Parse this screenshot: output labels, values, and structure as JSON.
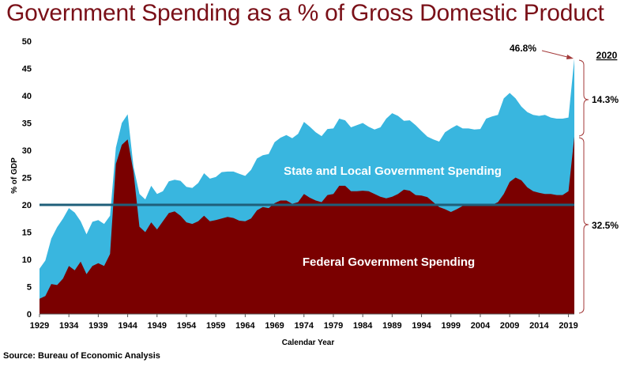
{
  "title": "Government Spending as a % of Gross Domestic Product",
  "source": "Source: Bureau of Economic Analysis",
  "chart_data": {
    "type": "area",
    "title": "Government Spending as a % of Gross Domestic Product",
    "xlabel": "Calendar Year",
    "ylabel": "% of GDP",
    "xlim": [
      1929,
      2020
    ],
    "ylim": [
      0,
      50
    ],
    "x_ticks": [
      "1929",
      "1934",
      "1939",
      "1944",
      "1949",
      "1954",
      "1959",
      "1964",
      "1969",
      "1974",
      "1979",
      "1984",
      "1989",
      "1994",
      "1999",
      "2004",
      "2009",
      "2014",
      "2019"
    ],
    "y_ticks": [
      0,
      5,
      10,
      15,
      20,
      25,
      30,
      35,
      40,
      45,
      50
    ],
    "reference_line": {
      "value": 20,
      "color": "#1f5f7a"
    },
    "colors": {
      "federal": "#7a0000",
      "state_local": "#39b6df",
      "title": "#7a1018",
      "bracket": "#a33a3a"
    },
    "series": [
      {
        "name": "Federal Government Spending",
        "stack": "bottom",
        "years": [
          1929,
          1930,
          1931,
          1932,
          1933,
          1934,
          1935,
          1936,
          1937,
          1938,
          1939,
          1940,
          1941,
          1942,
          1943,
          1944,
          1945,
          1946,
          1947,
          1948,
          1949,
          1950,
          1951,
          1952,
          1953,
          1954,
          1955,
          1956,
          1957,
          1958,
          1959,
          1960,
          1961,
          1962,
          1963,
          1964,
          1965,
          1966,
          1967,
          1968,
          1969,
          1970,
          1971,
          1972,
          1973,
          1974,
          1975,
          1976,
          1977,
          1978,
          1979,
          1980,
          1981,
          1982,
          1983,
          1984,
          1985,
          1986,
          1987,
          1988,
          1989,
          1990,
          1991,
          1992,
          1993,
          1994,
          1995,
          1996,
          1997,
          1998,
          1999,
          2000,
          2001,
          2002,
          2003,
          2004,
          2005,
          2006,
          2007,
          2008,
          2009,
          2010,
          2011,
          2012,
          2013,
          2014,
          2015,
          2016,
          2017,
          2018,
          2019,
          2020
        ],
        "values": [
          2.8,
          3.3,
          5.5,
          5.3,
          6.5,
          8.8,
          8.0,
          9.6,
          7.3,
          8.8,
          9.3,
          8.8,
          11.0,
          27.5,
          31.0,
          32.0,
          26.0,
          16.0,
          15.0,
          16.8,
          15.5,
          17.0,
          18.5,
          18.8,
          18.0,
          16.8,
          16.5,
          17.0,
          18.0,
          17.0,
          17.2,
          17.5,
          17.8,
          17.6,
          17.1,
          17.0,
          17.5,
          19.0,
          19.6,
          19.4,
          20.3,
          20.8,
          20.8,
          20.2,
          20.5,
          22.0,
          21.3,
          20.8,
          20.5,
          21.8,
          22.0,
          23.5,
          23.5,
          22.5,
          22.5,
          22.6,
          22.5,
          22.0,
          21.5,
          21.2,
          21.5,
          22.0,
          22.8,
          22.6,
          21.8,
          21.7,
          21.4,
          20.5,
          19.6,
          19.2,
          18.7,
          19.2,
          19.8,
          20.0,
          20.0,
          20.0,
          20.0,
          20.0,
          20.5,
          22.0,
          24.2,
          25.0,
          24.5,
          23.2,
          22.5,
          22.2,
          22.0,
          22.0,
          21.8,
          21.8,
          22.5,
          32.5
        ]
      },
      {
        "name": "State and Local Government Spending",
        "stack": "total",
        "years": [
          1929,
          1930,
          1931,
          1932,
          1933,
          1934,
          1935,
          1936,
          1937,
          1938,
          1939,
          1940,
          1941,
          1942,
          1943,
          1944,
          1945,
          1946,
          1947,
          1948,
          1949,
          1950,
          1951,
          1952,
          1953,
          1954,
          1955,
          1956,
          1957,
          1958,
          1959,
          1960,
          1961,
          1962,
          1963,
          1964,
          1965,
          1966,
          1967,
          1968,
          1969,
          1970,
          1971,
          1972,
          1973,
          1974,
          1975,
          1976,
          1977,
          1978,
          1979,
          1980,
          1981,
          1982,
          1983,
          1984,
          1985,
          1986,
          1987,
          1988,
          1989,
          1990,
          1991,
          1992,
          1993,
          1994,
          1995,
          1996,
          1997,
          1998,
          1999,
          2000,
          2001,
          2002,
          2003,
          2004,
          2005,
          2006,
          2007,
          2008,
          2009,
          2010,
          2011,
          2012,
          2013,
          2014,
          2015,
          2016,
          2017,
          2018,
          2019,
          2020
        ],
        "values": [
          8.3,
          9.8,
          13.8,
          15.9,
          17.5,
          19.4,
          18.6,
          17.0,
          14.6,
          16.9,
          17.2,
          16.5,
          18.0,
          30.5,
          35.0,
          36.6,
          27.0,
          22.0,
          21.0,
          23.5,
          22.0,
          22.5,
          24.3,
          24.6,
          24.4,
          23.3,
          23.1,
          24.0,
          25.8,
          24.8,
          25.1,
          26.0,
          26.1,
          26.1,
          25.7,
          25.3,
          26.4,
          28.5,
          29.1,
          29.3,
          31.5,
          32.3,
          32.8,
          32.2,
          33.0,
          35.2,
          34.3,
          33.3,
          32.6,
          33.9,
          34.0,
          35.8,
          35.5,
          34.2,
          34.6,
          35.0,
          34.3,
          33.8,
          34.2,
          35.8,
          36.8,
          36.3,
          35.4,
          35.5,
          34.6,
          33.5,
          32.5,
          32.0,
          31.6,
          33.3,
          34.0,
          34.6,
          34.0,
          34.0,
          33.8,
          33.9,
          35.8,
          36.2,
          36.5,
          39.5,
          40.5,
          39.5,
          38.0,
          37.0,
          36.5,
          36.3,
          36.5,
          36.0,
          35.8,
          35.8,
          36.0,
          46.8
        ]
      }
    ],
    "annotations": {
      "peak_label": "46.8%",
      "year_label": "2020",
      "state_local_share": "14.3%",
      "federal_share": "32.5%",
      "federal_area_label": "Federal Government Spending",
      "state_area_label": "State and Local Government Spending"
    }
  }
}
